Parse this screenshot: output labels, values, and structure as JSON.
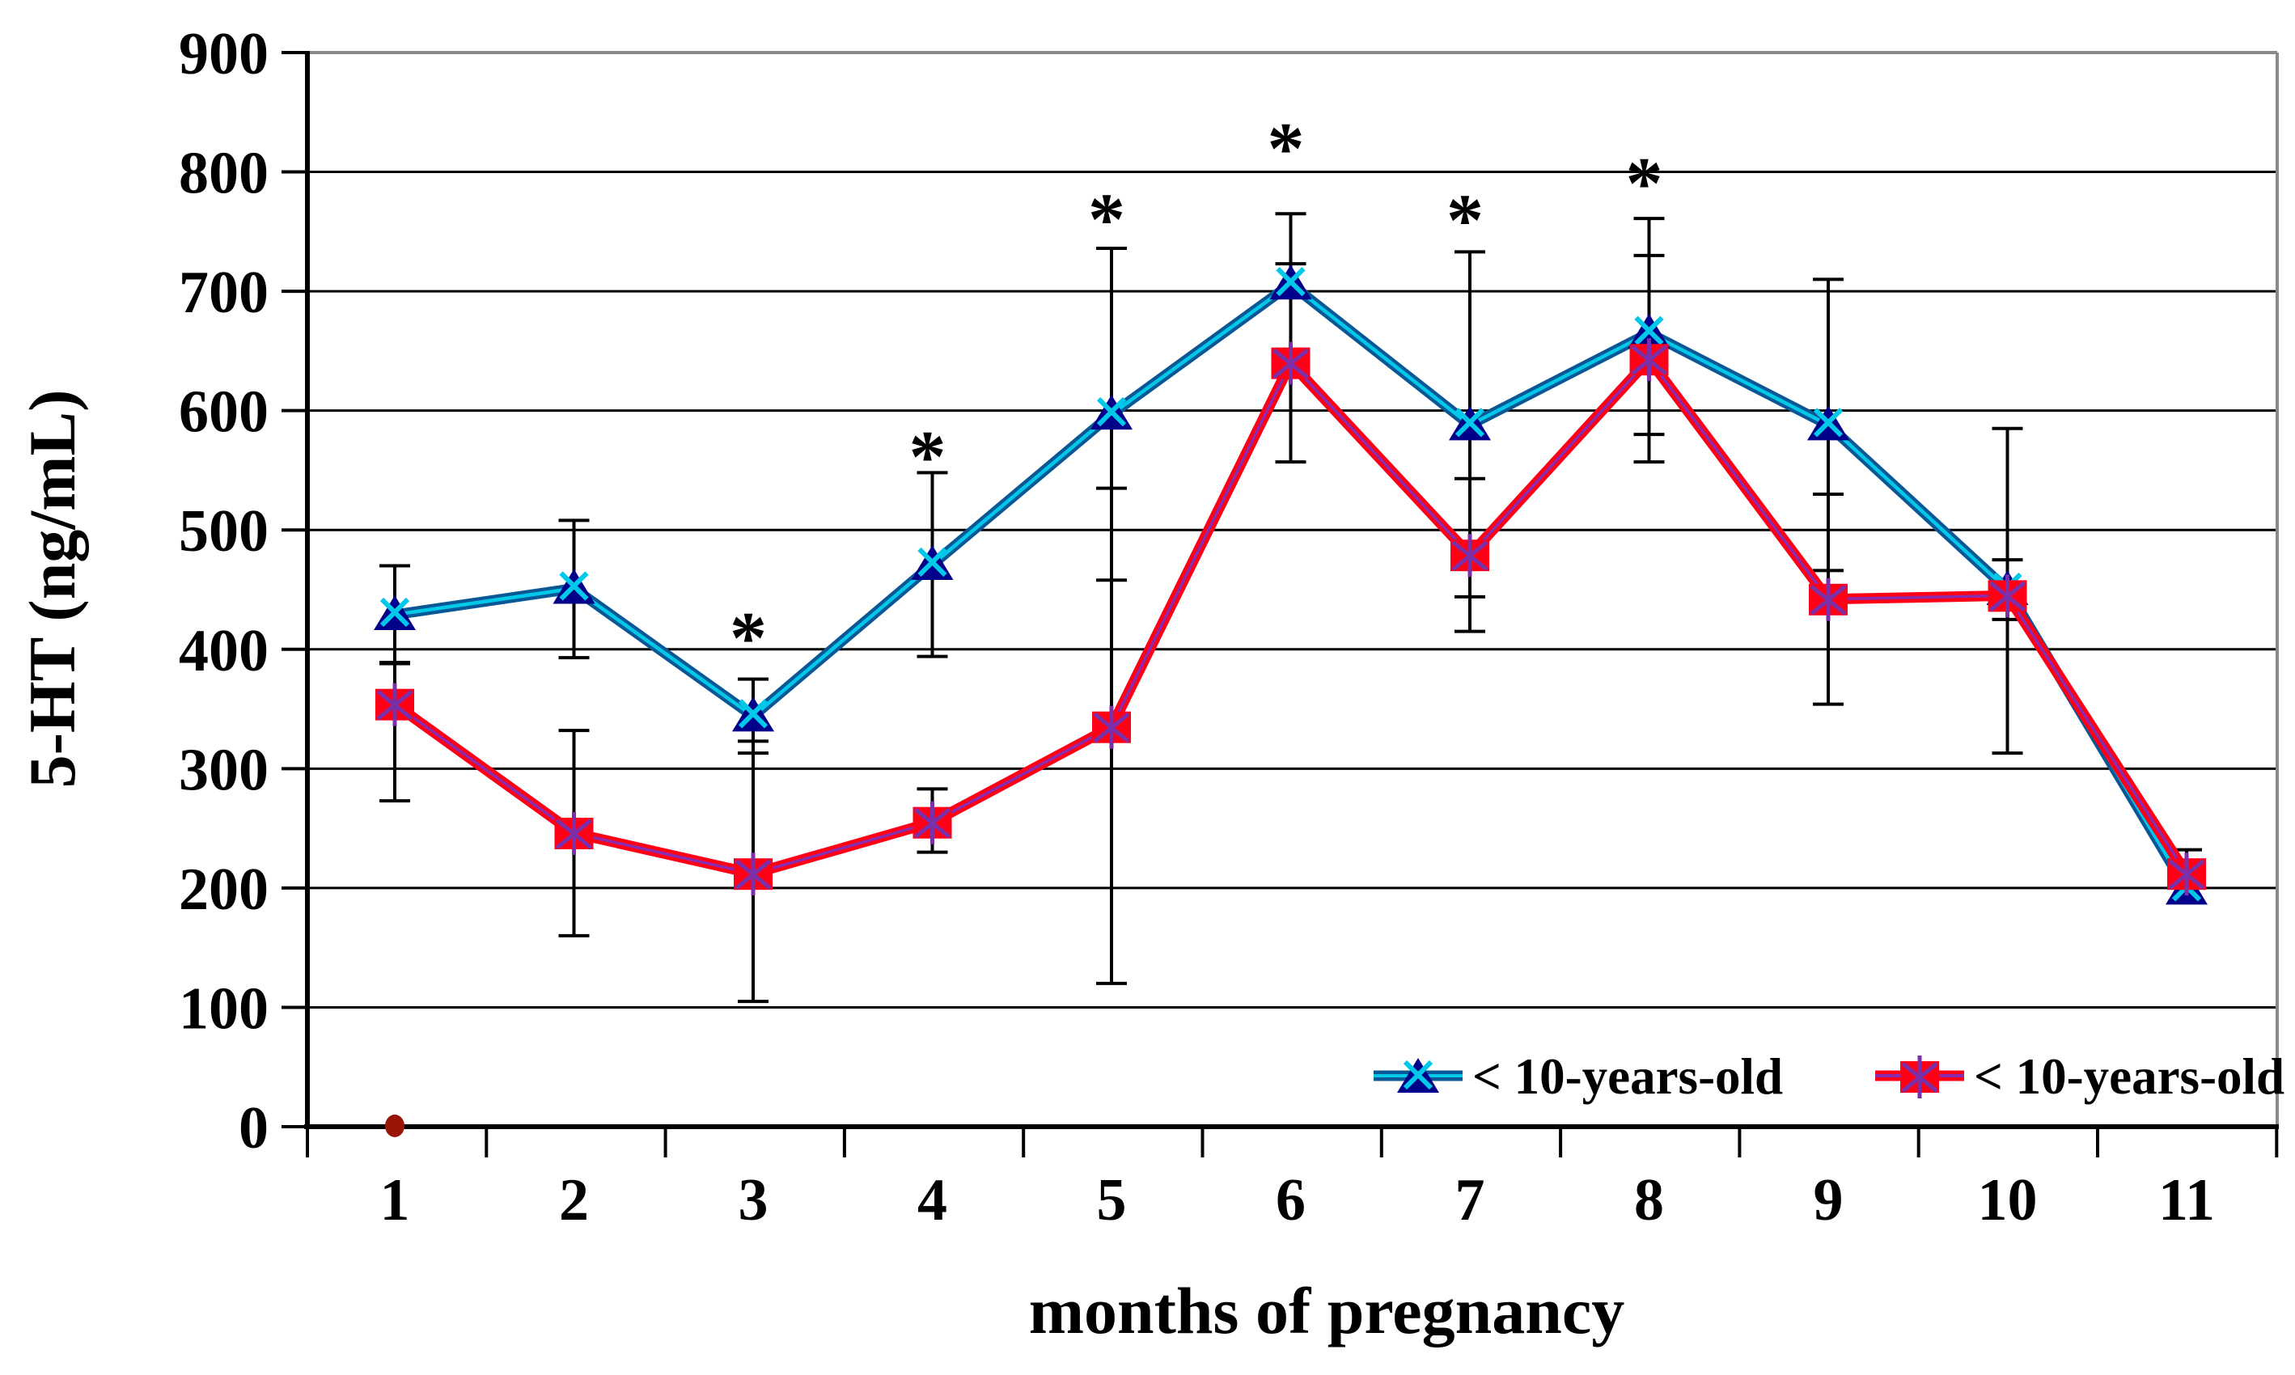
{
  "chart_data": {
    "type": "line",
    "title": "",
    "xlabel": "months of pregnancy",
    "ylabel": "5-HT (ng/mL)",
    "x_categories": [
      "1",
      "2",
      "3",
      "4",
      "5",
      "6",
      "7",
      "8",
      "9",
      "10",
      "11"
    ],
    "x_values": [
      1,
      2,
      3,
      4,
      5,
      6,
      7,
      8,
      9,
      10,
      11
    ],
    "ylim": [
      0,
      900
    ],
    "ytick_step": 100,
    "ytick_labels": [
      "0",
      "100",
      "200",
      "300",
      "400",
      "500",
      "600",
      "700",
      "800",
      "900"
    ],
    "grid": true,
    "legend_position": "bottom-right-inside",
    "series": [
      {
        "name": "< 10-years-old",
        "marker": "triangle-with-x",
        "line_color": "#0a5796",
        "line_core_color": "#00c8e8",
        "marker_color": "#00008b",
        "marker_accent_color": "#00c8e8",
        "values": [
          429,
          451,
          344,
          471,
          597,
          706,
          588,
          665,
          588,
          450,
          199
        ],
        "err_low": [
          389,
          393,
          313,
          394,
          458,
          647,
          444,
          580,
          466,
          425,
          null
        ],
        "err_high": [
          470,
          508,
          375,
          548,
          736,
          765,
          733,
          761,
          710,
          475,
          null
        ]
      },
      {
        "name": "< 10-years-old",
        "marker": "square-with-asterisk",
        "line_color": "#ff0016",
        "line_core_color": "#8a2bb0",
        "marker_color": "#ff0016",
        "marker_accent_color": "#7b2fa8",
        "values": [
          354,
          246,
          212,
          255,
          335,
          640,
          479,
          643,
          442,
          445,
          212
        ],
        "err_low": [
          273,
          160,
          105,
          230,
          120,
          557,
          415,
          557,
          354,
          313,
          192
        ],
        "err_high": [
          388,
          332,
          323,
          283,
          535,
          723,
          543,
          730,
          530,
          585,
          232
        ]
      }
    ],
    "annotations": {
      "symbol": "*",
      "points": [
        {
          "month": 3,
          "y": 417
        },
        {
          "month": 4,
          "y": 569
        },
        {
          "month": 5,
          "y": 768
        },
        {
          "month": 6,
          "y": 827
        },
        {
          "month": 7,
          "y": 767
        },
        {
          "month": 8,
          "y": 798
        }
      ]
    },
    "stray_point": {
      "month": 1,
      "y": 0,
      "color": "#9b1408"
    },
    "colors": {
      "gridline": "#000000",
      "axis": "#000000",
      "border_top_right": "#8a8a8a",
      "error_bar": "#000000"
    }
  }
}
